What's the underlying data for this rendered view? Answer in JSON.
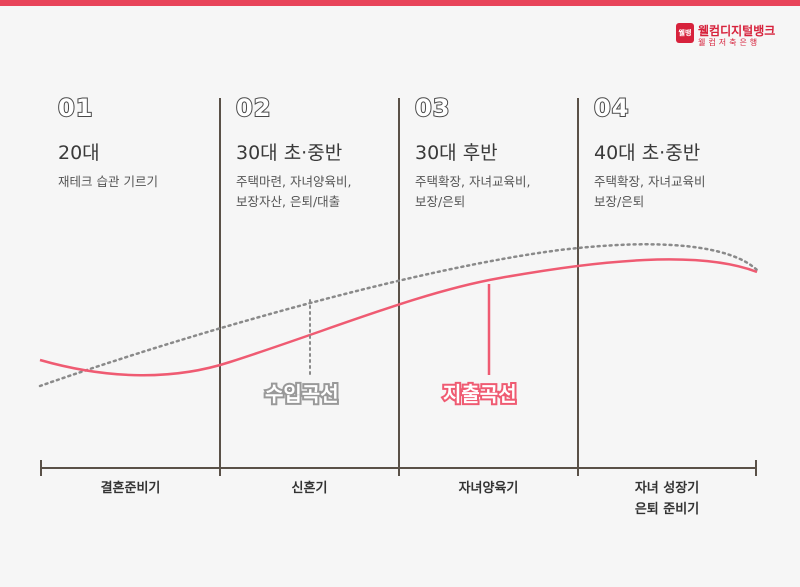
{
  "brand": {
    "badge": "웰뱅",
    "name": "웰컴디지털뱅크",
    "subname": "웰컴저축은행",
    "accent_color": "#e8445a"
  },
  "stages": [
    {
      "number": "01",
      "title": "20대",
      "desc": "재테크 습관 기르기"
    },
    {
      "number": "02",
      "title": "30대 초·중반",
      "desc": "주택마련, 자녀양육비,\n보장자산, 은퇴/대출"
    },
    {
      "number": "03",
      "title": "30대 후반",
      "desc": "주택확장, 자녀교육비,\n보장/은퇴"
    },
    {
      "number": "04",
      "title": "40대 초·중반",
      "desc": "주택확장, 자녀교육비\n보장/은퇴"
    }
  ],
  "curves": {
    "income_label": "수입곡선",
    "expense_label": "지출곡선",
    "income_color": "#8a8a8a",
    "expense_color": "#ef5b72"
  },
  "phases": [
    {
      "label": "결혼준비기"
    },
    {
      "label": "신혼기"
    },
    {
      "label": "자녀양육기"
    },
    {
      "label": "자녀 성장기\n은퇴 준비기"
    }
  ]
}
